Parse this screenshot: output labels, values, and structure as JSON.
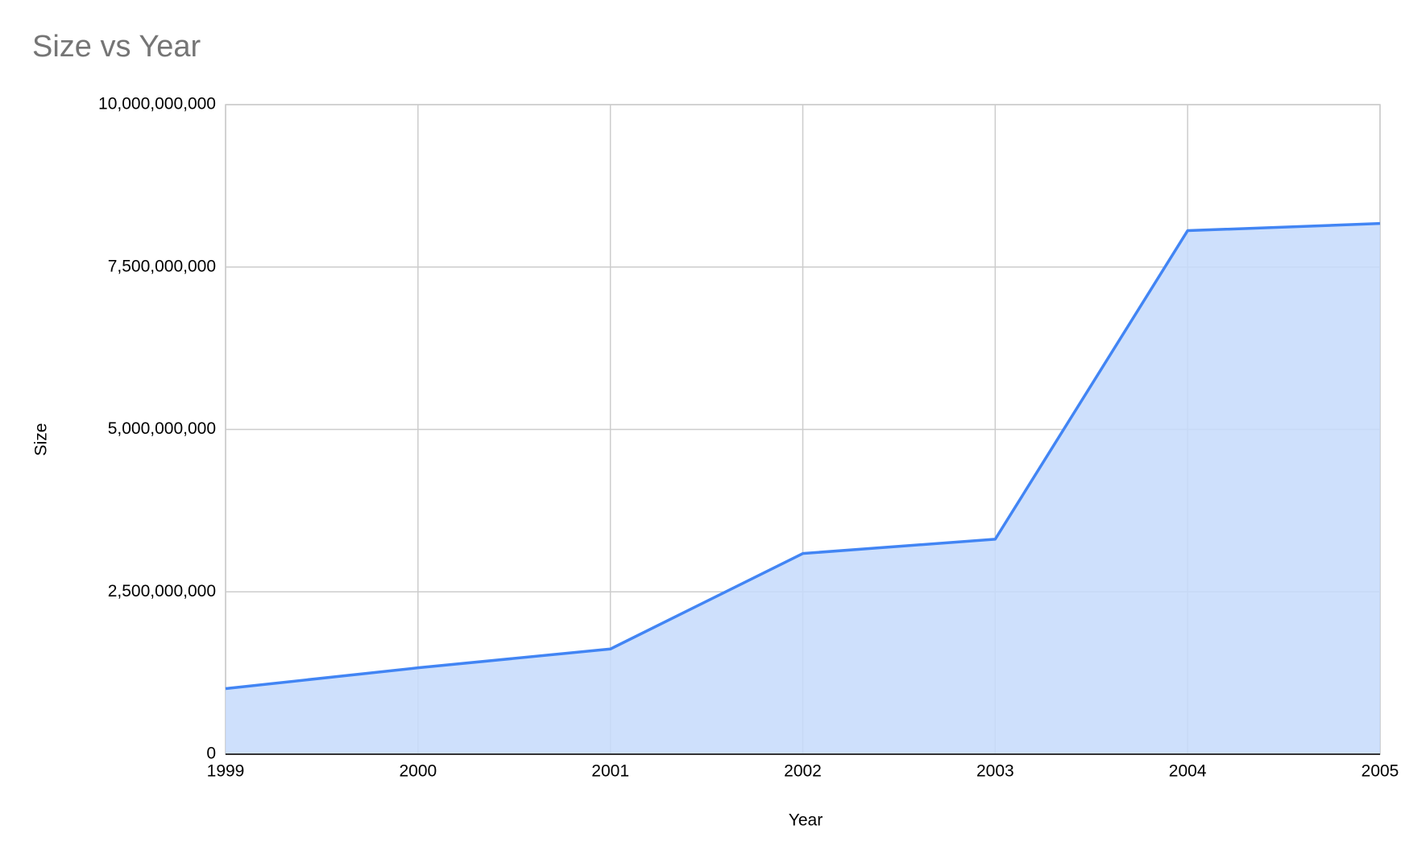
{
  "chart_data": {
    "type": "area",
    "title": "Size vs Year",
    "x_label": "Year",
    "y_label": "Size",
    "x": [
      1999,
      2000,
      2001,
      2002,
      2003,
      2004,
      2005
    ],
    "series": [
      {
        "name": "Size",
        "color": "#4285f4",
        "fill": "#c6dafc",
        "values": [
          1010000000,
          1330000000,
          1620000000,
          3090000000,
          3310000000,
          8060000000,
          8170000000
        ]
      }
    ],
    "xlim": [
      1999,
      2005
    ],
    "xticks": [
      1999,
      2000,
      2001,
      2002,
      2003,
      2004,
      2005
    ],
    "ylim": [
      0,
      10000000000
    ],
    "yticks": [
      {
        "value": 0,
        "label": "0"
      },
      {
        "value": 2500000000,
        "label": "2,500,000,000"
      },
      {
        "value": 5000000000,
        "label": "5,000,000,000"
      },
      {
        "value": 7500000000,
        "label": "7,500,000,000"
      },
      {
        "value": 10000000000,
        "label": "10,000,000,000"
      }
    ],
    "grid": true
  }
}
